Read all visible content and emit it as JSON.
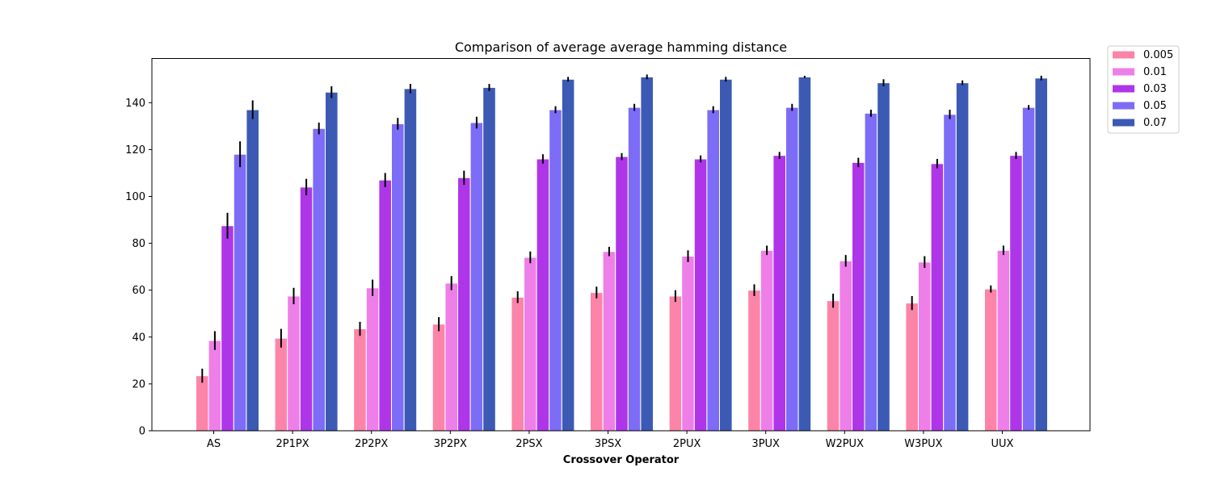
{
  "chart_data": {
    "type": "bar",
    "title": "Comparison of average average hamming distance",
    "xlabel": "Crossover Operator",
    "ylabel": "",
    "ylim": [
      0,
      160
    ],
    "yticks": [
      0,
      20,
      40,
      60,
      80,
      100,
      120,
      140
    ],
    "grid": false,
    "legend_position": "outside-top-right",
    "categories": [
      "AS",
      "2P1PX",
      "2P2PX",
      "3P2PX",
      "2PSX",
      "3PSX",
      "2PUX",
      "3PUX",
      "W2PUX",
      "W3PUX",
      "UUX"
    ],
    "series": [
      {
        "name": "0.005",
        "color": "#fc84a8",
        "values": [
          23.5,
          39.5,
          43.5,
          45.5,
          57,
          59,
          57.5,
          60,
          55.5,
          54.5,
          60.5
        ],
        "errors": [
          3,
          4,
          3,
          3,
          2.5,
          2.5,
          2.5,
          2.5,
          3,
          3,
          1.5
        ]
      },
      {
        "name": "0.01",
        "color": "#ee7fe8",
        "values": [
          38.5,
          57.5,
          61,
          63,
          74,
          76.5,
          74.5,
          77,
          72.5,
          72,
          77
        ],
        "errors": [
          4,
          3.5,
          3.5,
          3,
          2.5,
          2,
          2.5,
          2,
          2.5,
          2.5,
          2
        ]
      },
      {
        "name": "0.03",
        "color": "#ae36e8",
        "values": [
          87.5,
          104,
          107,
          108,
          116,
          117,
          116,
          117.5,
          114.5,
          114,
          117.5
        ],
        "errors": [
          5.5,
          3.5,
          3,
          3,
          2,
          1.5,
          1.5,
          1.5,
          2,
          2,
          1.5
        ]
      },
      {
        "name": "0.05",
        "color": "#7d6cf6",
        "values": [
          118,
          129,
          131,
          131.5,
          137,
          138,
          137,
          138,
          135.5,
          135,
          138
        ],
        "errors": [
          5.5,
          2.5,
          2.5,
          2.5,
          1.5,
          1.5,
          1.5,
          1.5,
          1.5,
          2,
          1
        ]
      },
      {
        "name": "0.07",
        "color": "#3c5ab4",
        "values": [
          137,
          144.5,
          146,
          146.5,
          150,
          151,
          150,
          151,
          148.5,
          148.5,
          150.5
        ],
        "errors": [
          4,
          2.5,
          2,
          1.5,
          1,
          1,
          1,
          0.5,
          1.5,
          1,
          1
        ]
      }
    ]
  }
}
